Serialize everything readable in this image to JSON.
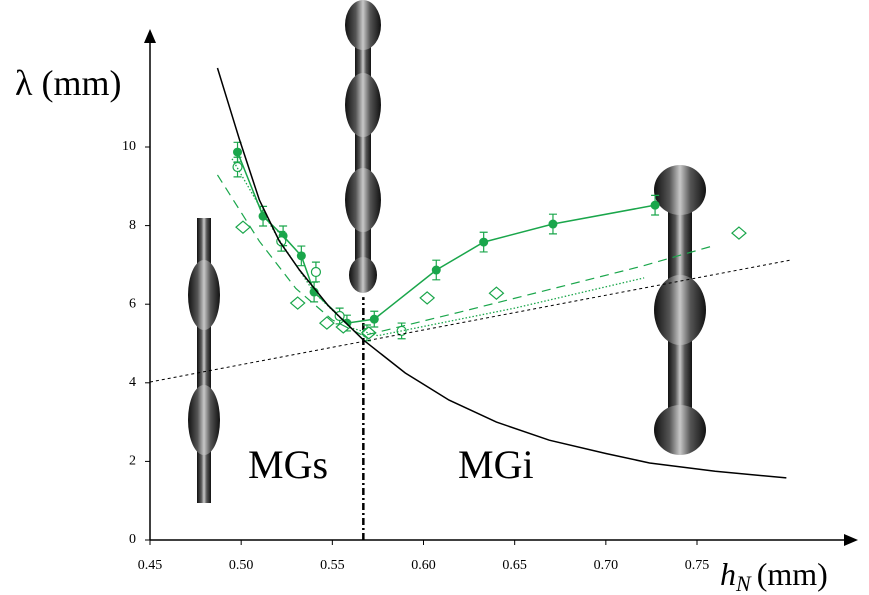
{
  "chart_data": {
    "type": "scatter",
    "y_label": "λ (mm)",
    "x_label": "h",
    "x_label_subscript": "N",
    "x_label_unit": "(mm)",
    "annotations": [
      "MGs",
      "MGi"
    ],
    "xlim": [
      0.45,
      0.835
    ],
    "ylim": [
      0,
      12.85
    ],
    "xticks": [
      0.45,
      {
        "value": 0.5,
        "label": "0.50"
      },
      0.55,
      {
        "value": 0.6,
        "label": "0.60"
      },
      0.65,
      {
        "value": 0.7,
        "label": "0.70"
      },
      0.75
    ],
    "yticks": [
      0,
      2,
      4,
      6,
      8,
      10
    ],
    "threshold_x": 0.567,
    "threshold_top": 6.18,
    "series": [
      {
        "color": "#1aa64b",
        "marker": "filled-circle",
        "line": "solid",
        "x": [
          0.498,
          0.512,
          0.523,
          0.533,
          0.54,
          0.558,
          0.573,
          0.607,
          0.633,
          0.671,
          0.727
        ],
        "values": [
          9.87,
          8.24,
          7.74,
          7.23,
          6.31,
          5.52,
          5.62,
          6.87,
          7.58,
          8.04,
          8.52
        ],
        "errors": [
          0.25,
          0.25,
          0.25,
          0.25,
          0.25,
          0.2,
          0.2,
          0.25,
          0.25,
          0.25,
          0.25
        ]
      },
      {
        "color": "#1aa64b",
        "marker": "open-circle",
        "line": "none",
        "x": [
          0.498,
          0.522,
          0.541,
          0.554,
          0.569,
          0.588
        ],
        "values": [
          9.49,
          7.6,
          6.82,
          5.7,
          5.27,
          5.32
        ],
        "errors": [
          0.25,
          0.25,
          0.25,
          0.2,
          0.2,
          0.2
        ]
      },
      {
        "color": "#1aa64b",
        "marker": "open-diamond",
        "line": "none",
        "x": [
          0.501,
          0.531,
          0.547,
          0.556,
          0.57,
          0.602,
          0.64,
          0.773
        ],
        "values": [
          7.96,
          6.03,
          5.52,
          5.42,
          5.27,
          6.16,
          6.28,
          7.81
        ]
      },
      {
        "color": "#1aa64b",
        "marker": "none",
        "line": "dotted",
        "x": [
          0.495,
          0.52,
          0.54,
          0.56,
          0.575,
          0.65,
          0.721
        ],
        "values": [
          9.7,
          7.7,
          6.3,
          5.4,
          5.2,
          5.9,
          6.67
        ]
      },
      {
        "color": "#1aa64b",
        "marker": "none",
        "line": "dashed",
        "x": [
          0.487,
          0.51,
          0.53,
          0.55,
          0.567,
          0.62,
          0.72,
          0.76
        ],
        "values": [
          9.29,
          7.6,
          6.4,
          5.6,
          5.2,
          5.8,
          6.97,
          7.5
        ]
      },
      {
        "color": "#000000",
        "marker": "none",
        "line": "solid",
        "x": [
          0.487,
          0.499,
          0.51,
          0.521,
          0.532,
          0.548,
          0.567,
          0.59,
          0.614,
          0.64,
          0.669,
          0.7,
          0.724,
          0.76,
          0.799
        ],
        "values": [
          12.01,
          10.2,
          8.65,
          7.6,
          6.87,
          5.95,
          5.09,
          4.25,
          3.56,
          3.0,
          2.54,
          2.2,
          1.96,
          1.75,
          1.58
        ]
      },
      {
        "color": "#000000",
        "marker": "none",
        "line": "fine-dotted",
        "x": [
          0.45,
          0.801
        ],
        "values": [
          4.02,
          7.12
        ]
      }
    ]
  }
}
